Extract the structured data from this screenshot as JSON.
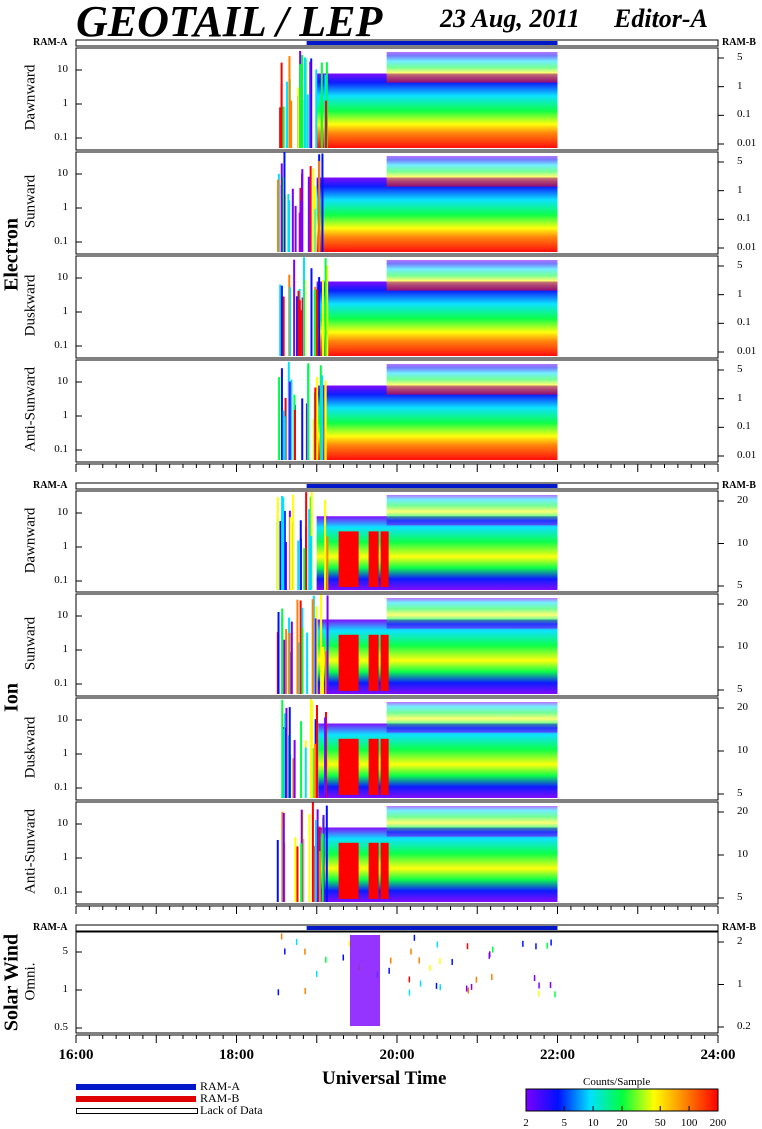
{
  "header": {
    "title": "GEOTAIL / LEP",
    "date": "23 Aug, 2011",
    "editor": "Editor-A"
  },
  "chart_data": {
    "type": "heatmap",
    "x_range_hours": [
      16,
      24
    ],
    "x_ticks": [
      "16:00",
      "18:00",
      "20:00",
      "22:00",
      "24:00"
    ],
    "xlabel": "Universal Time",
    "data_coverage_hours": [
      18.5,
      22.0
    ],
    "ram_labels": {
      "left": "RAM-A",
      "right": "RAM-B"
    },
    "groups": [
      {
        "name": "Electron",
        "panels": [
          "Dawnward",
          "Sunward",
          "Duskward",
          "Anti-Sunward"
        ],
        "y_ticks": [
          "10",
          "1",
          "0.1"
        ],
        "right_ticks": [
          "5",
          "1",
          "0.1",
          "0.01"
        ]
      },
      {
        "name": "Ion",
        "panels": [
          "Dawnward",
          "Sunward",
          "Duskward",
          "Anti-Sunward"
        ],
        "y_ticks": [
          "10",
          "1",
          "0.1"
        ],
        "right_ticks": [
          "20",
          "10",
          "5"
        ]
      },
      {
        "name": "Solar Wind",
        "panels": [
          "Omni."
        ],
        "y_ticks": [
          "5",
          "1",
          "0.5"
        ],
        "right_ticks": [
          "2",
          "1",
          "0.2"
        ]
      }
    ],
    "legend": [
      "RAM-A",
      "RAM-B",
      "Lack of Data"
    ],
    "colorbar": {
      "title": "Counts/Sample",
      "ticks": [
        "2",
        "5",
        "10",
        "20",
        "50",
        "100",
        "200"
      ],
      "colors": [
        "#7b00ff",
        "#0010ff",
        "#00e0ff",
        "#00ff40",
        "#ffff00",
        "#ff8000",
        "#ff0000"
      ]
    }
  },
  "colors": {
    "ram_a": "#0018c8",
    "ram_b": "#e00000"
  }
}
